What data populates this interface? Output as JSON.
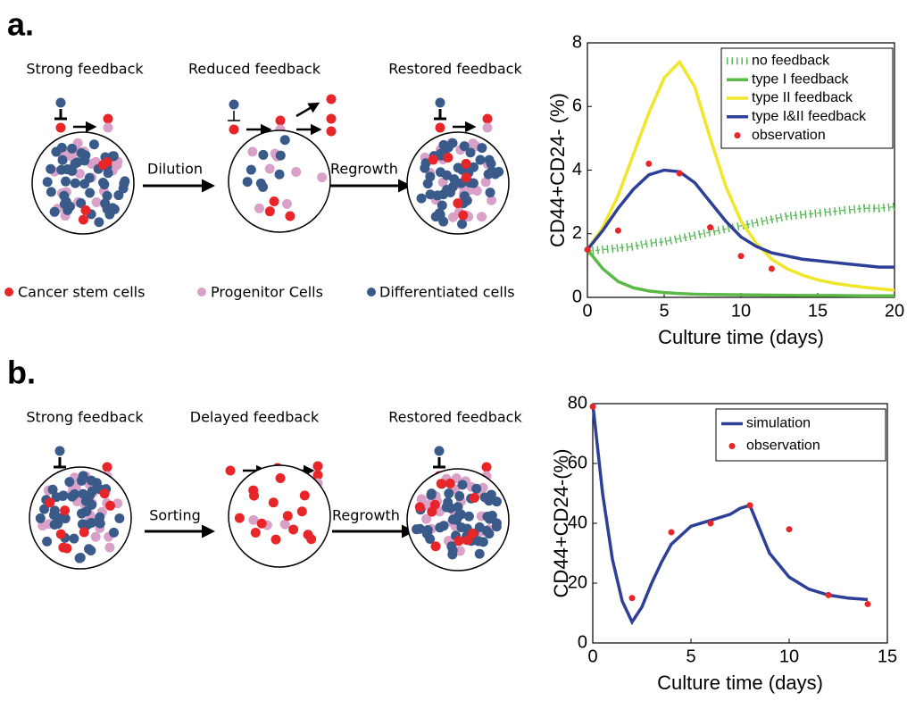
{
  "panel_a": {
    "label": "a.",
    "states": [
      "Strong feedback",
      "Reduced feedback",
      "Restored feedback"
    ],
    "arrows": [
      "Dilution",
      "Regrowth"
    ],
    "legend": [
      "Cancer stem cells",
      "Progenitor Cells",
      "Differentiated cells"
    ]
  },
  "panel_b": {
    "label": "b.",
    "states": [
      "Strong feedback",
      "Delayed feedback",
      "Restored feedback"
    ],
    "arrows": [
      "Sorting",
      "Regrowth"
    ]
  },
  "chart_data": [
    {
      "type": "line",
      "xlabel": "Culture time (days)",
      "ylabel": "CD44+CD24- (%)",
      "xlim": [
        0,
        20
      ],
      "ylim": [
        0,
        8
      ],
      "xticks": [
        0,
        5,
        10,
        15,
        20
      ],
      "yticks": [
        0,
        2,
        4,
        6,
        8
      ],
      "legend": "upper right",
      "series": [
        {
          "name": "no feedback",
          "type": "line",
          "style": "dashed",
          "color": "#5cb85c",
          "x": [
            0,
            1,
            2,
            3,
            4,
            5,
            6,
            7,
            8,
            9,
            10,
            11,
            12,
            13,
            14,
            15,
            16,
            17,
            18,
            19,
            20
          ],
          "values": [
            1.45,
            1.5,
            1.55,
            1.6,
            1.7,
            1.75,
            1.85,
            1.95,
            2.05,
            2.15,
            2.25,
            2.35,
            2.45,
            2.55,
            2.6,
            2.65,
            2.7,
            2.75,
            2.8,
            2.8,
            2.85
          ]
        },
        {
          "name": "type I feedback",
          "type": "line",
          "style": "solid",
          "color": "#5bb947",
          "x": [
            0,
            1,
            2,
            3,
            4,
            5,
            6,
            7,
            8,
            10,
            12,
            14,
            16,
            18,
            20
          ],
          "values": [
            1.5,
            0.9,
            0.5,
            0.3,
            0.2,
            0.15,
            0.12,
            0.1,
            0.09,
            0.08,
            0.07,
            0.06,
            0.06,
            0.05,
            0.05
          ]
        },
        {
          "name": "type II feedback",
          "type": "line",
          "style": "solid",
          "color": "#f0e62a",
          "x": [
            0,
            1,
            2,
            3,
            4,
            5,
            6,
            7,
            8,
            9,
            10,
            11,
            12,
            13,
            14,
            15,
            16,
            17,
            18,
            19,
            20
          ],
          "values": [
            1.5,
            2.2,
            3.2,
            4.5,
            5.8,
            6.9,
            7.4,
            6.6,
            5.0,
            3.5,
            2.4,
            1.7,
            1.2,
            0.9,
            0.7,
            0.55,
            0.45,
            0.38,
            0.32,
            0.27,
            0.22
          ]
        },
        {
          "name": "type I&II feedback",
          "type": "line",
          "style": "solid",
          "color": "#2e3f97",
          "x": [
            0,
            1,
            2,
            3,
            4,
            5,
            6,
            7,
            8,
            9,
            10,
            11,
            12,
            13,
            14,
            15,
            16,
            17,
            18,
            19,
            20
          ],
          "values": [
            1.5,
            2.1,
            2.8,
            3.4,
            3.85,
            4.0,
            3.95,
            3.6,
            3.0,
            2.4,
            1.9,
            1.6,
            1.4,
            1.3,
            1.2,
            1.15,
            1.1,
            1.05,
            1.0,
            0.95,
            0.95
          ]
        },
        {
          "name": "observation",
          "type": "scatter",
          "color": "#e8262a",
          "x": [
            0,
            2,
            4,
            6,
            8,
            10,
            12
          ],
          "values": [
            1.5,
            2.1,
            4.2,
            3.9,
            2.2,
            1.3,
            0.9
          ]
        }
      ]
    },
    {
      "type": "line",
      "xlabel": "Culture time (days)",
      "ylabel": "CD44+CD24-(%)",
      "xlim": [
        0,
        15
      ],
      "ylim": [
        0,
        80
      ],
      "xticks": [
        0,
        5,
        10,
        15
      ],
      "yticks": [
        0,
        20,
        40,
        60,
        80
      ],
      "legend": "upper right",
      "series": [
        {
          "name": "simulation",
          "type": "line",
          "style": "solid",
          "color": "#2e3f97",
          "x": [
            0,
            0.5,
            1,
            1.5,
            2,
            2.5,
            3,
            3.5,
            4,
            5,
            6,
            7,
            7.5,
            8,
            8.5,
            9,
            10,
            11,
            12,
            13,
            14
          ],
          "values": [
            80,
            50,
            28,
            14,
            7,
            12,
            20,
            27,
            33,
            39,
            41,
            43,
            45,
            46,
            38,
            30,
            22,
            18,
            16,
            15,
            14.5
          ]
        },
        {
          "name": "observation",
          "type": "scatter",
          "color": "#e8262a",
          "x": [
            0,
            2,
            4,
            6,
            8,
            10,
            12,
            14
          ],
          "values": [
            79,
            15,
            37,
            40,
            46,
            38,
            16,
            13
          ]
        }
      ]
    }
  ]
}
